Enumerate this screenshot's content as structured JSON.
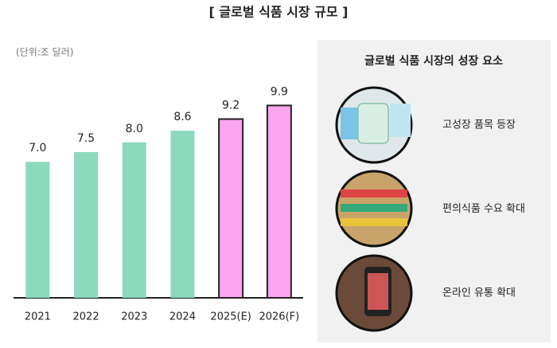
{
  "chart_data": {
    "type": "bar",
    "title": "[ 글로벌 식품 시장 규모 ]",
    "subtitle": "(단위:조 달러)",
    "categories": [
      "2021",
      "2022",
      "2023",
      "2024",
      "2025(E)",
      "2026(F)"
    ],
    "values": [
      7.0,
      7.5,
      8.0,
      8.6,
      9.2,
      9.9
    ],
    "value_labels": [
      "7.0",
      "7.5",
      "8.0",
      "8.6",
      "9.2",
      "9.9"
    ],
    "colors": [
      "#8dd9bd",
      "#8dd9bd",
      "#8dd9bd",
      "#8dd9bd",
      "#f9a6ef",
      "#f9a6ef"
    ],
    "edgecolors": [
      null,
      null,
      null,
      null,
      "#222222",
      "#222222"
    ]
  },
  "panel": {
    "title": "글로벌 식품 시장의 성장 요소",
    "items": [
      "고성장 품목 등장",
      "편의식품 수요 확대",
      "온라인 유통 확대"
    ]
  }
}
